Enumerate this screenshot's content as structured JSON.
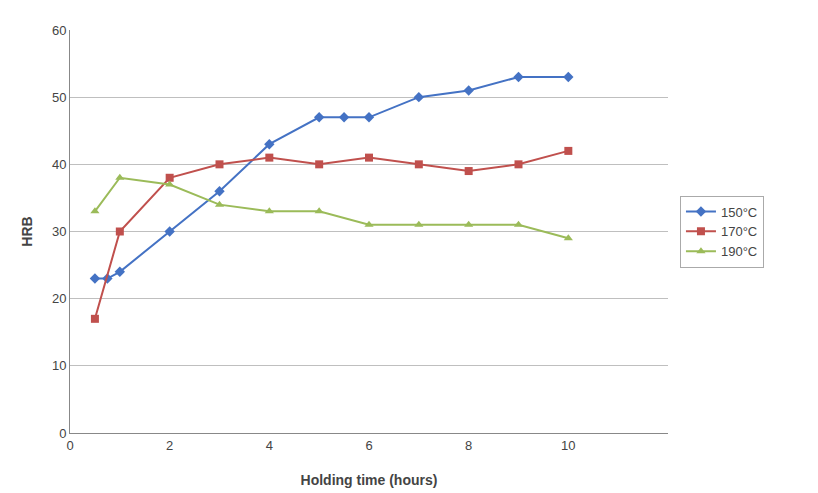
{
  "chart_data": {
    "type": "line",
    "xlabel": "Holding time (hours)",
    "ylabel": "HRB",
    "series": [
      {
        "name": "150°C",
        "color": "#4472C4",
        "marker": "diamond",
        "x": [
          0.5,
          0.75,
          1.0,
          2.0,
          3.0,
          4.0,
          5.0,
          5.5,
          6.0,
          7.0,
          8.0,
          9.0,
          10.0
        ],
        "values": [
          23,
          23,
          24,
          30,
          36,
          43,
          47,
          47,
          47,
          50,
          51,
          53,
          53
        ]
      },
      {
        "name": "170°C",
        "color": "#C0504D",
        "marker": "square",
        "x": [
          0.5,
          1.0,
          2.0,
          3.0,
          4.0,
          5.0,
          6.0,
          7.0,
          8.0,
          9.0,
          10.0
        ],
        "values": [
          17,
          30,
          38,
          40,
          41,
          40,
          41,
          40,
          39,
          40,
          42
        ]
      },
      {
        "name": "190°C",
        "color": "#9BBB59",
        "marker": "triangle-up",
        "x": [
          0.5,
          1.0,
          2.0,
          3.0,
          4.0,
          5.0,
          6.0,
          7.0,
          8.0,
          9.0,
          10.0
        ],
        "values": [
          33,
          38,
          37,
          34,
          33,
          33,
          31,
          31,
          31,
          31,
          29
        ]
      }
    ],
    "xlim": [
      0,
      12
    ],
    "ylim": [
      0,
      60
    ],
    "xticks": [
      0,
      2,
      4,
      6,
      8,
      10
    ],
    "yticks": [
      0,
      10,
      20,
      30,
      40,
      50,
      60
    ],
    "grid": "y",
    "legend": "right"
  }
}
